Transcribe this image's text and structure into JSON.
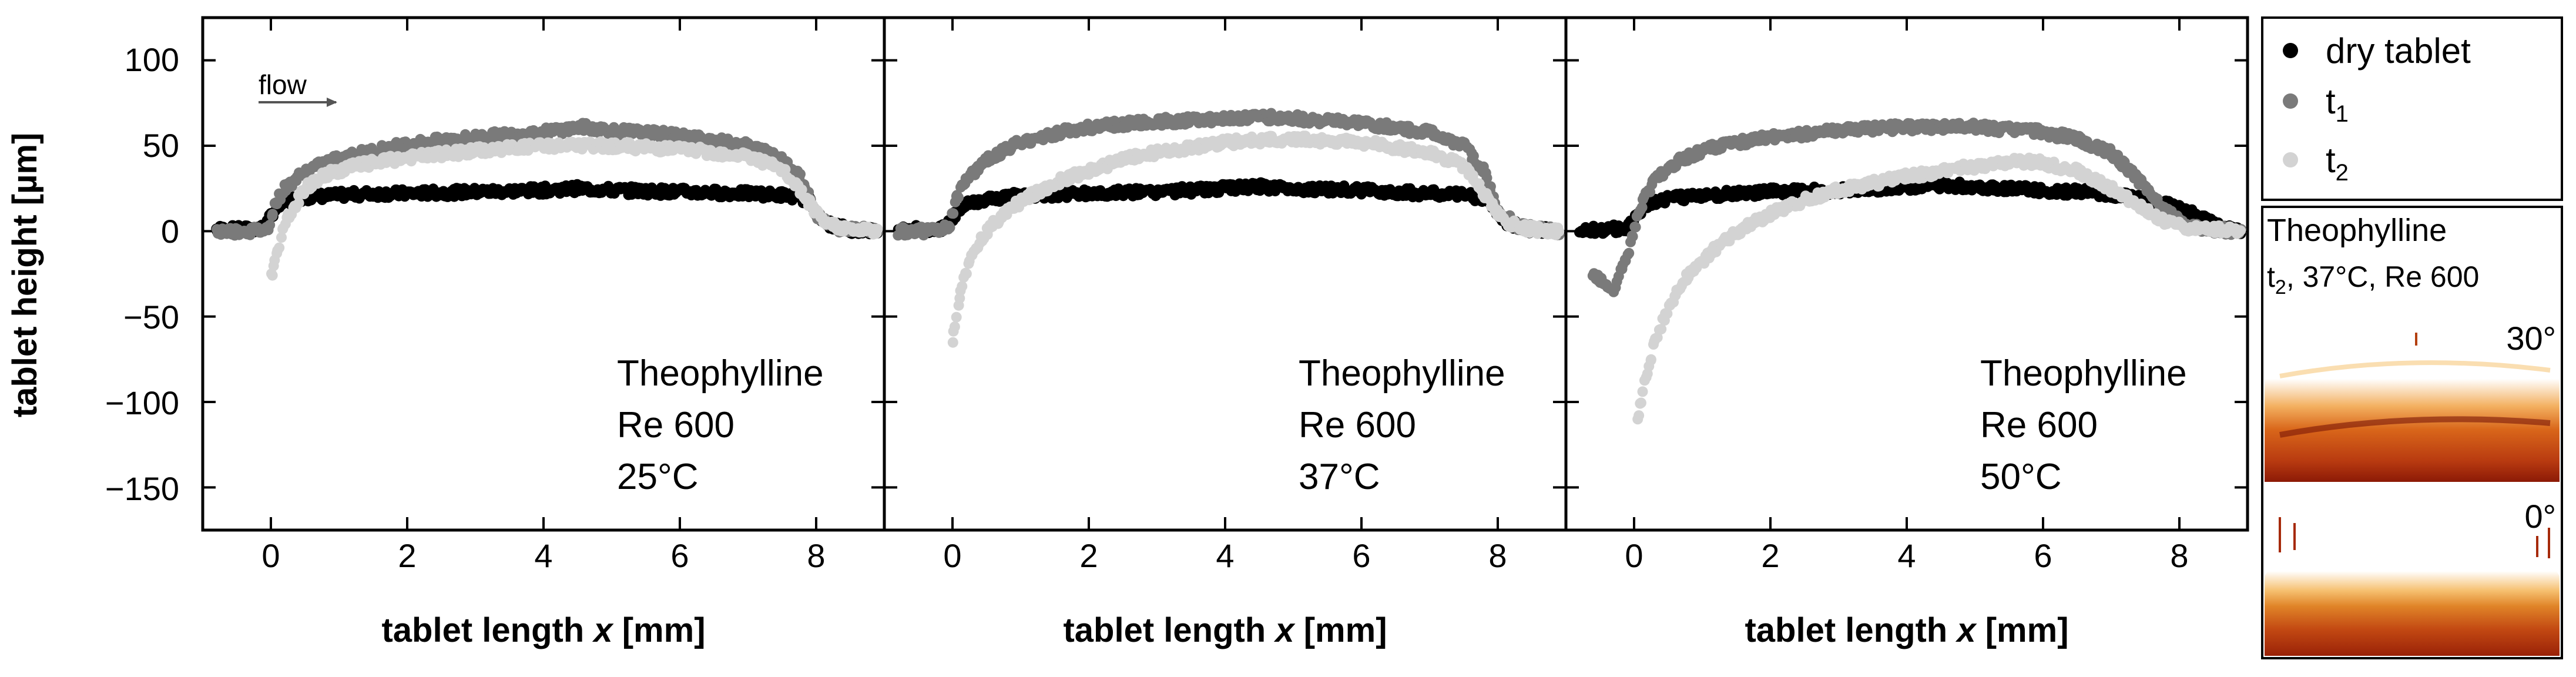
{
  "chart_data": {
    "type": "scatter",
    "ylabel": "tablet height [µm]",
    "xlabel_prefix": "tablet length ",
    "xlabel_var": "x",
    "xlabel_unit": " [mm]",
    "xlim": [
      -1,
      9
    ],
    "ylim": [
      -175,
      125
    ],
    "xticks": [
      0,
      2,
      4,
      6,
      8
    ],
    "xtick_labels": [
      "0",
      "2",
      "4",
      "6",
      "8"
    ],
    "yticks": [
      100,
      50,
      0,
      -50,
      -100,
      -150
    ],
    "ytick_labels": [
      "100",
      "50",
      "0",
      "−50",
      "−100",
      "−150"
    ],
    "flow_label": "flow",
    "legend": {
      "entries": [
        {
          "label": "dry tablet",
          "sub": "",
          "color": "#000000"
        },
        {
          "label": "t",
          "sub": "1",
          "color": "#7a7a7a"
        },
        {
          "label": "t",
          "sub": "2",
          "color": "#d3d3d3"
        }
      ]
    },
    "inset": {
      "title": "Theophylline",
      "subtitle_t": "t",
      "subtitle_sub": "2",
      "subtitle_rest": ", 37°C, Re 600",
      "view_top": "30°",
      "view_bottom": "0°"
    },
    "panels": [
      {
        "annotation": [
          "Theophylline",
          "Re 600",
          "25°C"
        ],
        "series": [
          {
            "name": "dry tablet",
            "color": "#000000",
            "x": [
              -0.8,
              -0.4,
              -0.1,
              0.05,
              0.2,
              0.5,
              1.0,
              1.5,
              2,
              3,
              4,
              4.5,
              5,
              6,
              7,
              7.6,
              7.9,
              8.1,
              8.5,
              8.9
            ],
            "y": [
              1,
              1,
              2,
              12,
              17,
              20,
              21,
              22,
              22,
              23,
              24,
              25,
              24,
              23,
              22,
              21,
              18,
              5,
              1,
              0
            ]
          },
          {
            "name": "t1",
            "color": "#7a7a7a",
            "x": [
              -0.8,
              -0.3,
              -0.05,
              0.05,
              0.2,
              0.5,
              1.0,
              1.5,
              2,
              3,
              4,
              4.6,
              5,
              6,
              7,
              7.5,
              7.8,
              8.0,
              8.3,
              8.9
            ],
            "y": [
              0,
              0,
              1,
              15,
              25,
              35,
              43,
              47,
              51,
              55,
              58,
              61,
              59,
              56,
              50,
              43,
              30,
              10,
              2,
              0
            ]
          },
          {
            "name": "t2",
            "color": "#d3d3d3",
            "x": [
              0.0,
              0.1,
              0.25,
              0.5,
              0.8,
              1.2,
              2,
              3,
              4,
              5,
              6,
              7,
              7.5,
              7.8,
              8.1,
              8.5,
              8.9
            ],
            "y": [
              -28,
              -10,
              8,
              25,
              33,
              38,
              43,
              47,
              50,
              50,
              48,
              44,
              36,
              22,
              5,
              1,
              0
            ]
          }
        ]
      },
      {
        "annotation": [
          "Theophylline",
          "Re 600",
          "37°C"
        ],
        "series": [
          {
            "name": "dry tablet",
            "color": "#000000",
            "x": [
              -0.8,
              -0.4,
              -0.1,
              0.05,
              0.2,
              0.5,
              1.0,
              2,
              3,
              4,
              4.5,
              5,
              6,
              7,
              7.6,
              7.9,
              8.1,
              8.5,
              8.9
            ],
            "y": [
              1,
              1,
              2,
              10,
              16,
              19,
              21,
              22,
              23,
              25,
              26,
              25,
              24,
              22,
              21,
              17,
              5,
              1,
              0
            ]
          },
          {
            "name": "t1",
            "color": "#7a7a7a",
            "x": [
              -0.8,
              -0.3,
              -0.05,
              0.05,
              0.2,
              0.5,
              1.0,
              1.5,
              2,
              3,
              4,
              4.5,
              5,
              6,
              7,
              7.5,
              7.8,
              8.0,
              8.3,
              8.9
            ],
            "y": [
              0,
              0,
              2,
              18,
              30,
              42,
              52,
              57,
              61,
              64,
              66,
              67,
              66,
              63,
              58,
              50,
              35,
              12,
              3,
              0
            ]
          },
          {
            "name": "t2",
            "color": "#d3d3d3",
            "x": [
              0.0,
              0.05,
              0.15,
              0.3,
              0.5,
              0.8,
              1.2,
              1.6,
              2,
              2.5,
              3,
              4,
              5,
              6,
              7,
              7.5,
              7.8,
              8.1,
              8.5,
              8.9
            ],
            "y": [
              -65,
              -50,
              -30,
              -12,
              0,
              12,
              22,
              30,
              35,
              42,
              46,
              52,
              54,
              52,
              46,
              38,
              22,
              5,
              1,
              0
            ]
          }
        ]
      },
      {
        "annotation": [
          "Theophylline",
          "Re 600",
          "50°C"
        ],
        "series": [
          {
            "name": "dry tablet",
            "color": "#000000",
            "x": [
              -0.8,
              -0.4,
              -0.1,
              0.05,
              0.2,
              0.5,
              1.0,
              2,
              3,
              4,
              4.5,
              5,
              6,
              7,
              7.5,
              7.9,
              8.2,
              8.6,
              8.9
            ],
            "y": [
              1,
              1,
              2,
              10,
              16,
              19,
              21,
              23,
              24,
              26,
              27,
              26,
              24,
              22,
              18,
              15,
              10,
              2,
              0
            ]
          },
          {
            "name": "t1",
            "color": "#7a7a7a",
            "x": [
              -0.6,
              -0.3,
              -0.1,
              0.0,
              0.1,
              0.3,
              0.6,
              1.0,
              1.5,
              2,
              3,
              4,
              5,
              6,
              6.5,
              7.0,
              7.4,
              7.8,
              8.1,
              8.5,
              8.9
            ],
            "y": [
              -25,
              -35,
              -15,
              0,
              15,
              30,
              40,
              47,
              52,
              55,
              59,
              61,
              61,
              58,
              54,
              46,
              30,
              12,
              3,
              1,
              0
            ]
          },
          {
            "name": "t2",
            "color": "#d3d3d3",
            "x": [
              0.05,
              0.15,
              0.3,
              0.5,
              0.8,
              1.2,
              1.6,
              2.0,
              2.5,
              3,
              4,
              5,
              5.5,
              6,
              6.5,
              7,
              7.5,
              7.8,
              8.1,
              8.5,
              8.9
            ],
            "y": [
              -110,
              -90,
              -65,
              -45,
              -25,
              -10,
              2,
              10,
              18,
              24,
              32,
              38,
              41,
              40,
              35,
              25,
              12,
              5,
              2,
              1,
              0
            ]
          }
        ]
      }
    ]
  }
}
